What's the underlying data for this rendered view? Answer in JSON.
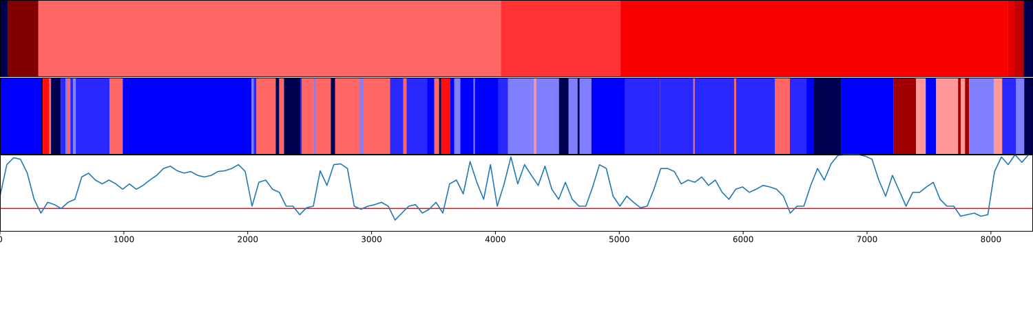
{
  "chart_data": [
    {
      "type": "bands",
      "xlim": [
        0,
        8340
      ],
      "bins": [
        0,
        65,
        310,
        4045,
        5010,
        8135,
        8190,
        8265,
        8340
      ],
      "colors": [
        "#000050",
        "#800000",
        "#ff6666",
        "#ff3333",
        "#f90000",
        "#e00000",
        "#c00000",
        "#000050"
      ]
    },
    {
      "type": "bands",
      "xlim": [
        0,
        8340
      ],
      "bins": [
        0,
        334,
        345,
        395,
        412,
        490,
        529,
        545,
        568,
        590,
        612,
        885,
        991,
        2031,
        2048,
        2070,
        2226,
        2254,
        2293,
        2426,
        2437,
        2532,
        2549,
        2671,
        2705,
        2905,
        2933,
        3150,
        3256,
        3283,
        3450,
        3506,
        3545,
        3562,
        3634,
        3667,
        3717,
        3823,
        3834,
        4023,
        4101,
        4313,
        4329,
        4513,
        4591,
        4663,
        4680,
        4775,
        5047,
        5331,
        5337,
        5598,
        5609,
        5927,
        5943,
        6255,
        6377,
        6511,
        6572,
        6789,
        7212,
        7395,
        7474,
        7557,
        7735,
        7757,
        7791,
        7824,
        8025,
        8091,
        8203,
        8269,
        8340
      ],
      "colors": [
        "#0000ff",
        "#000050",
        "#ff1010",
        "#ff6666",
        "#000050",
        "#2828ff",
        "#8080ff",
        "#ff6666",
        "#2828ff",
        "#8080ff",
        "#2828ff",
        "#ff6666",
        "#0000ff",
        "#8080ff",
        "#2828ff",
        "#ff6666",
        "#000050",
        "#ff6666",
        "#000050",
        "#2828ff",
        "#ff6666",
        "#8080ff",
        "#ff6666",
        "#000050",
        "#ff6666",
        "#8080ff",
        "#ff6666",
        "#2828ff",
        "#ff6666",
        "#2828ff",
        "#0000ff",
        "#ff6666",
        "#000050",
        "#ff1010",
        "#0000ff",
        "#8080ff",
        "#0000ff",
        "#8080ff",
        "#0000ff",
        "#2828ff",
        "#8080ff",
        "#ff9999",
        "#8080ff",
        "#000050",
        "#8080ff",
        "#000050",
        "#8080ff",
        "#0000ff",
        "#2828ff",
        "#a00000",
        "#2828ff",
        "#ff6666",
        "#2828ff",
        "#ff6666",
        "#2828ff",
        "#ff6666",
        "#2828ff",
        "#0000ff",
        "#000050",
        "#0000ff",
        "#a00000",
        "#ff9999",
        "#0000ff",
        "#ff9999",
        "#a00000",
        "#ff9999",
        "#a00000",
        "#8080ff",
        "#ff9999",
        "#2828ff",
        "#8080ff",
        "#000050"
      ]
    },
    {
      "type": "line",
      "xlim": [
        0,
        8340
      ],
      "ylim": [
        0,
        1
      ],
      "xticks": [
        0,
        1000,
        2000,
        3000,
        4000,
        5000,
        6000,
        7000,
        8000
      ],
      "hline": {
        "value": 0.3,
        "color": "#ff0000"
      },
      "x": [
        0,
        55,
        110,
        165,
        220,
        275,
        330,
        385,
        440,
        495,
        550,
        605,
        660,
        715,
        770,
        825,
        880,
        935,
        990,
        1045,
        1100,
        1155,
        1210,
        1265,
        1320,
        1375,
        1430,
        1485,
        1540,
        1595,
        1650,
        1705,
        1760,
        1815,
        1870,
        1925,
        1980,
        2035,
        2090,
        2145,
        2200,
        2255,
        2310,
        2365,
        2420,
        2475,
        2530,
        2585,
        2640,
        2695,
        2750,
        2805,
        2860,
        2915,
        2970,
        3025,
        3080,
        3135,
        3190,
        3245,
        3300,
        3355,
        3410,
        3465,
        3520,
        3575,
        3630,
        3685,
        3740,
        3795,
        3850,
        3905,
        3960,
        4015,
        4070,
        4125,
        4180,
        4235,
        4290,
        4345,
        4400,
        4455,
        4510,
        4565,
        4620,
        4675,
        4730,
        4785,
        4840,
        4895,
        4950,
        5005,
        5060,
        5115,
        5170,
        5225,
        5280,
        5335,
        5390,
        5445,
        5500,
        5555,
        5610,
        5665,
        5720,
        5775,
        5830,
        5885,
        5940,
        5995,
        6050,
        6105,
        6160,
        6215,
        6270,
        6325,
        6380,
        6435,
        6490,
        6545,
        6600,
        6655,
        6710,
        6765,
        6820,
        6875,
        6930,
        6985,
        7040,
        7095,
        7150,
        7205,
        7260,
        7315,
        7370,
        7425,
        7480,
        7535,
        7590,
        7645,
        7700,
        7755,
        7810,
        7865,
        7920,
        7975,
        8030,
        8085,
        8140,
        8195,
        8250,
        8305
      ],
      "series": [
        {
          "color": "#1f77b4",
          "values": [
            0.46,
            0.87,
            0.96,
            0.94,
            0.76,
            0.42,
            0.24,
            0.38,
            0.35,
            0.3,
            0.38,
            0.42,
            0.71,
            0.76,
            0.67,
            0.62,
            0.67,
            0.62,
            0.55,
            0.62,
            0.55,
            0.6,
            0.67,
            0.73,
            0.82,
            0.85,
            0.79,
            0.76,
            0.78,
            0.73,
            0.71,
            0.73,
            0.78,
            0.79,
            0.82,
            0.87,
            0.78,
            0.33,
            0.64,
            0.67,
            0.55,
            0.51,
            0.33,
            0.33,
            0.22,
            0.31,
            0.33,
            0.79,
            0.6,
            0.87,
            0.88,
            0.82,
            0.33,
            0.29,
            0.33,
            0.35,
            0.38,
            0.33,
            0.15,
            0.24,
            0.33,
            0.35,
            0.24,
            0.29,
            0.38,
            0.24,
            0.62,
            0.67,
            0.49,
            0.91,
            0.64,
            0.42,
            0.87,
            0.33,
            0.62,
            0.97,
            0.62,
            0.87,
            0.73,
            0.6,
            0.85,
            0.55,
            0.42,
            0.64,
            0.42,
            0.33,
            0.33,
            0.58,
            0.87,
            0.82,
            0.46,
            0.33,
            0.46,
            0.38,
            0.31,
            0.33,
            0.55,
            0.82,
            0.82,
            0.78,
            0.62,
            0.67,
            0.64,
            0.71,
            0.6,
            0.67,
            0.51,
            0.42,
            0.55,
            0.58,
            0.51,
            0.55,
            0.6,
            0.58,
            0.55,
            0.46,
            0.24,
            0.33,
            0.33,
            0.6,
            0.82,
            0.67,
            0.88,
            0.99,
            1.0,
            1.0,
            1.0,
            0.98,
            0.94,
            0.67,
            0.46,
            0.73,
            0.53,
            0.33,
            0.51,
            0.51,
            0.58,
            0.64,
            0.42,
            0.33,
            0.33,
            0.2,
            0.22,
            0.24,
            0.2,
            0.22,
            0.78,
            0.97,
            0.87,
            1.0,
            0.9,
            1.0
          ]
        }
      ]
    }
  ]
}
